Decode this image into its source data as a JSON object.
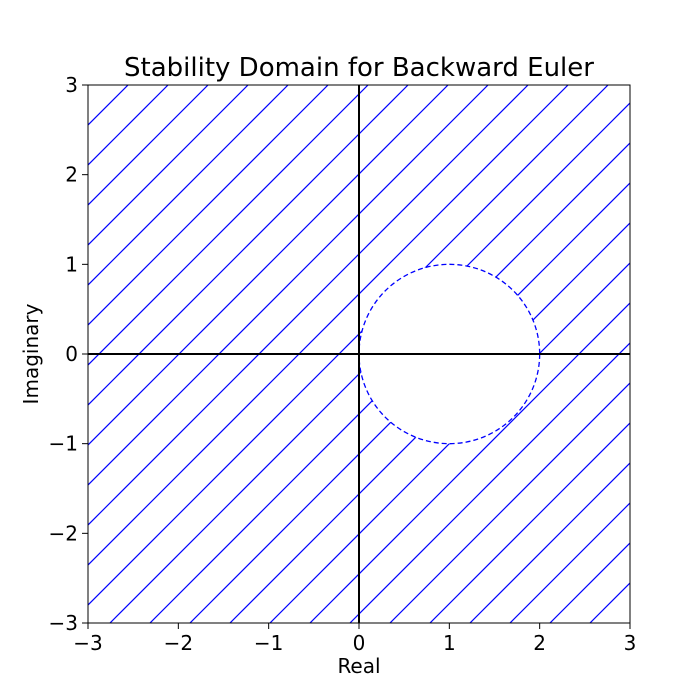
{
  "chart_data": {
    "type": "area",
    "title": "Stability Domain for Backward Euler",
    "xlabel": "Real",
    "ylabel": "Imaginary",
    "xlim": [
      -3,
      3
    ],
    "ylim": [
      -3,
      3
    ],
    "xticks": [
      -3,
      -2,
      -1,
      0,
      1,
      2,
      3
    ],
    "yticks": [
      -3,
      -2,
      -1,
      0,
      1,
      2,
      3
    ],
    "xtick_labels": [
      "−3",
      "−2",
      "−1",
      "0",
      "1",
      "2",
      "3"
    ],
    "ytick_labels": [
      "−3",
      "−2",
      "−1",
      "0",
      "1",
      "2",
      "3"
    ],
    "grid": false,
    "legend": "none",
    "stable_region": {
      "description": "exterior of circle |z - 1| = 1",
      "fill": "hatch",
      "hatch_direction": "diagonal"
    },
    "boundary_circle": {
      "center_x": 1,
      "center_y": 0,
      "radius": 1,
      "style": "dashed"
    },
    "reference_lines": [
      {
        "axis": "x",
        "value": 0
      },
      {
        "axis": "y",
        "value": 0
      }
    ],
    "colors": {
      "hatch": "#0000ff",
      "boundary": "#0000ff",
      "axes_lines": "#000000",
      "background": "#ffffff"
    }
  }
}
